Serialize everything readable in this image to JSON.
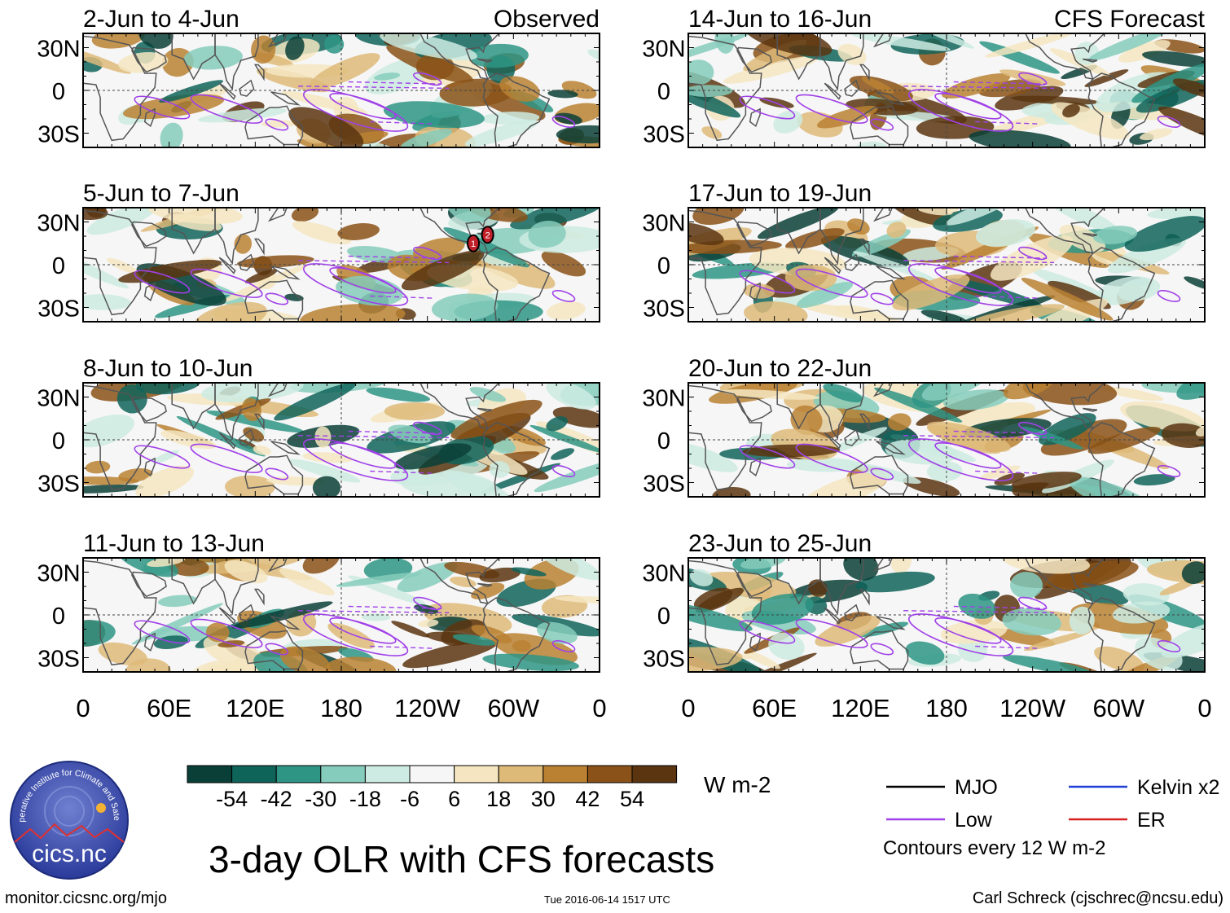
{
  "title": "3-day OLR with CFS forecasts",
  "units": "W m-2",
  "contour_note": "Contours every 12 W m-2",
  "footer": {
    "site": "monitor.cicsnc.org/mjo",
    "timestamp": "Tue 2016-06-14 1517 UTC",
    "author": "Carl Schreck (cjschrec@ncsu.edu)"
  },
  "logo": {
    "arc_text": "Cooperative Institute for Climate and Satellites",
    "name": "cics.nc"
  },
  "colorbar": {
    "ticks": [
      "-54",
      "-42",
      "-30",
      "-18",
      "-6",
      "6",
      "18",
      "30",
      "42",
      "54"
    ],
    "colors": [
      "#0a3f37",
      "#0f645a",
      "#2e9585",
      "#86ccbc",
      "#cdebe2",
      "#f6f6f6",
      "#f5e6c1",
      "#deba79",
      "#ba8132",
      "#8a5218",
      "#5b3510"
    ]
  },
  "legend": [
    {
      "label": "MJO",
      "color": "#000000"
    },
    {
      "label": "Kelvin x2",
      "color": "#2040d8"
    },
    {
      "label": "Low",
      "color": "#a040e8"
    },
    {
      "label": "ER",
      "color": "#d82020"
    }
  ],
  "chart_data": {
    "type": "heatmap",
    "title": "3-day OLR with CFS forecasts",
    "variable": "OLR anomaly",
    "units": "W m-2",
    "x_ticks": [
      "0",
      "60E",
      "120E",
      "180",
      "120W",
      "60W",
      "0"
    ],
    "y_ticks": [
      "30N",
      "0",
      "30S"
    ],
    "x_range": [
      0,
      360
    ],
    "y_range": [
      -40,
      40
    ],
    "contour_levels": [
      "-54",
      "-42",
      "-30",
      "-18",
      "-6",
      "6",
      "18",
      "30",
      "42",
      "54"
    ],
    "panels": [
      {
        "period": "2-Jun to 4-Jun",
        "label": "Observed"
      },
      {
        "period": "14-Jun to 16-Jun",
        "label": "CFS Forecast"
      },
      {
        "period": "5-Jun to 7-Jun",
        "label": ""
      },
      {
        "period": "17-Jun to 19-Jun",
        "label": ""
      },
      {
        "period": "8-Jun to 10-Jun",
        "label": ""
      },
      {
        "period": "20-Jun to 22-Jun",
        "label": ""
      },
      {
        "period": "11-Jun to 13-Jun",
        "label": ""
      },
      {
        "period": "23-Jun to 25-Jun",
        "label": ""
      }
    ],
    "storm_markers": [
      "1",
      "2"
    ]
  }
}
